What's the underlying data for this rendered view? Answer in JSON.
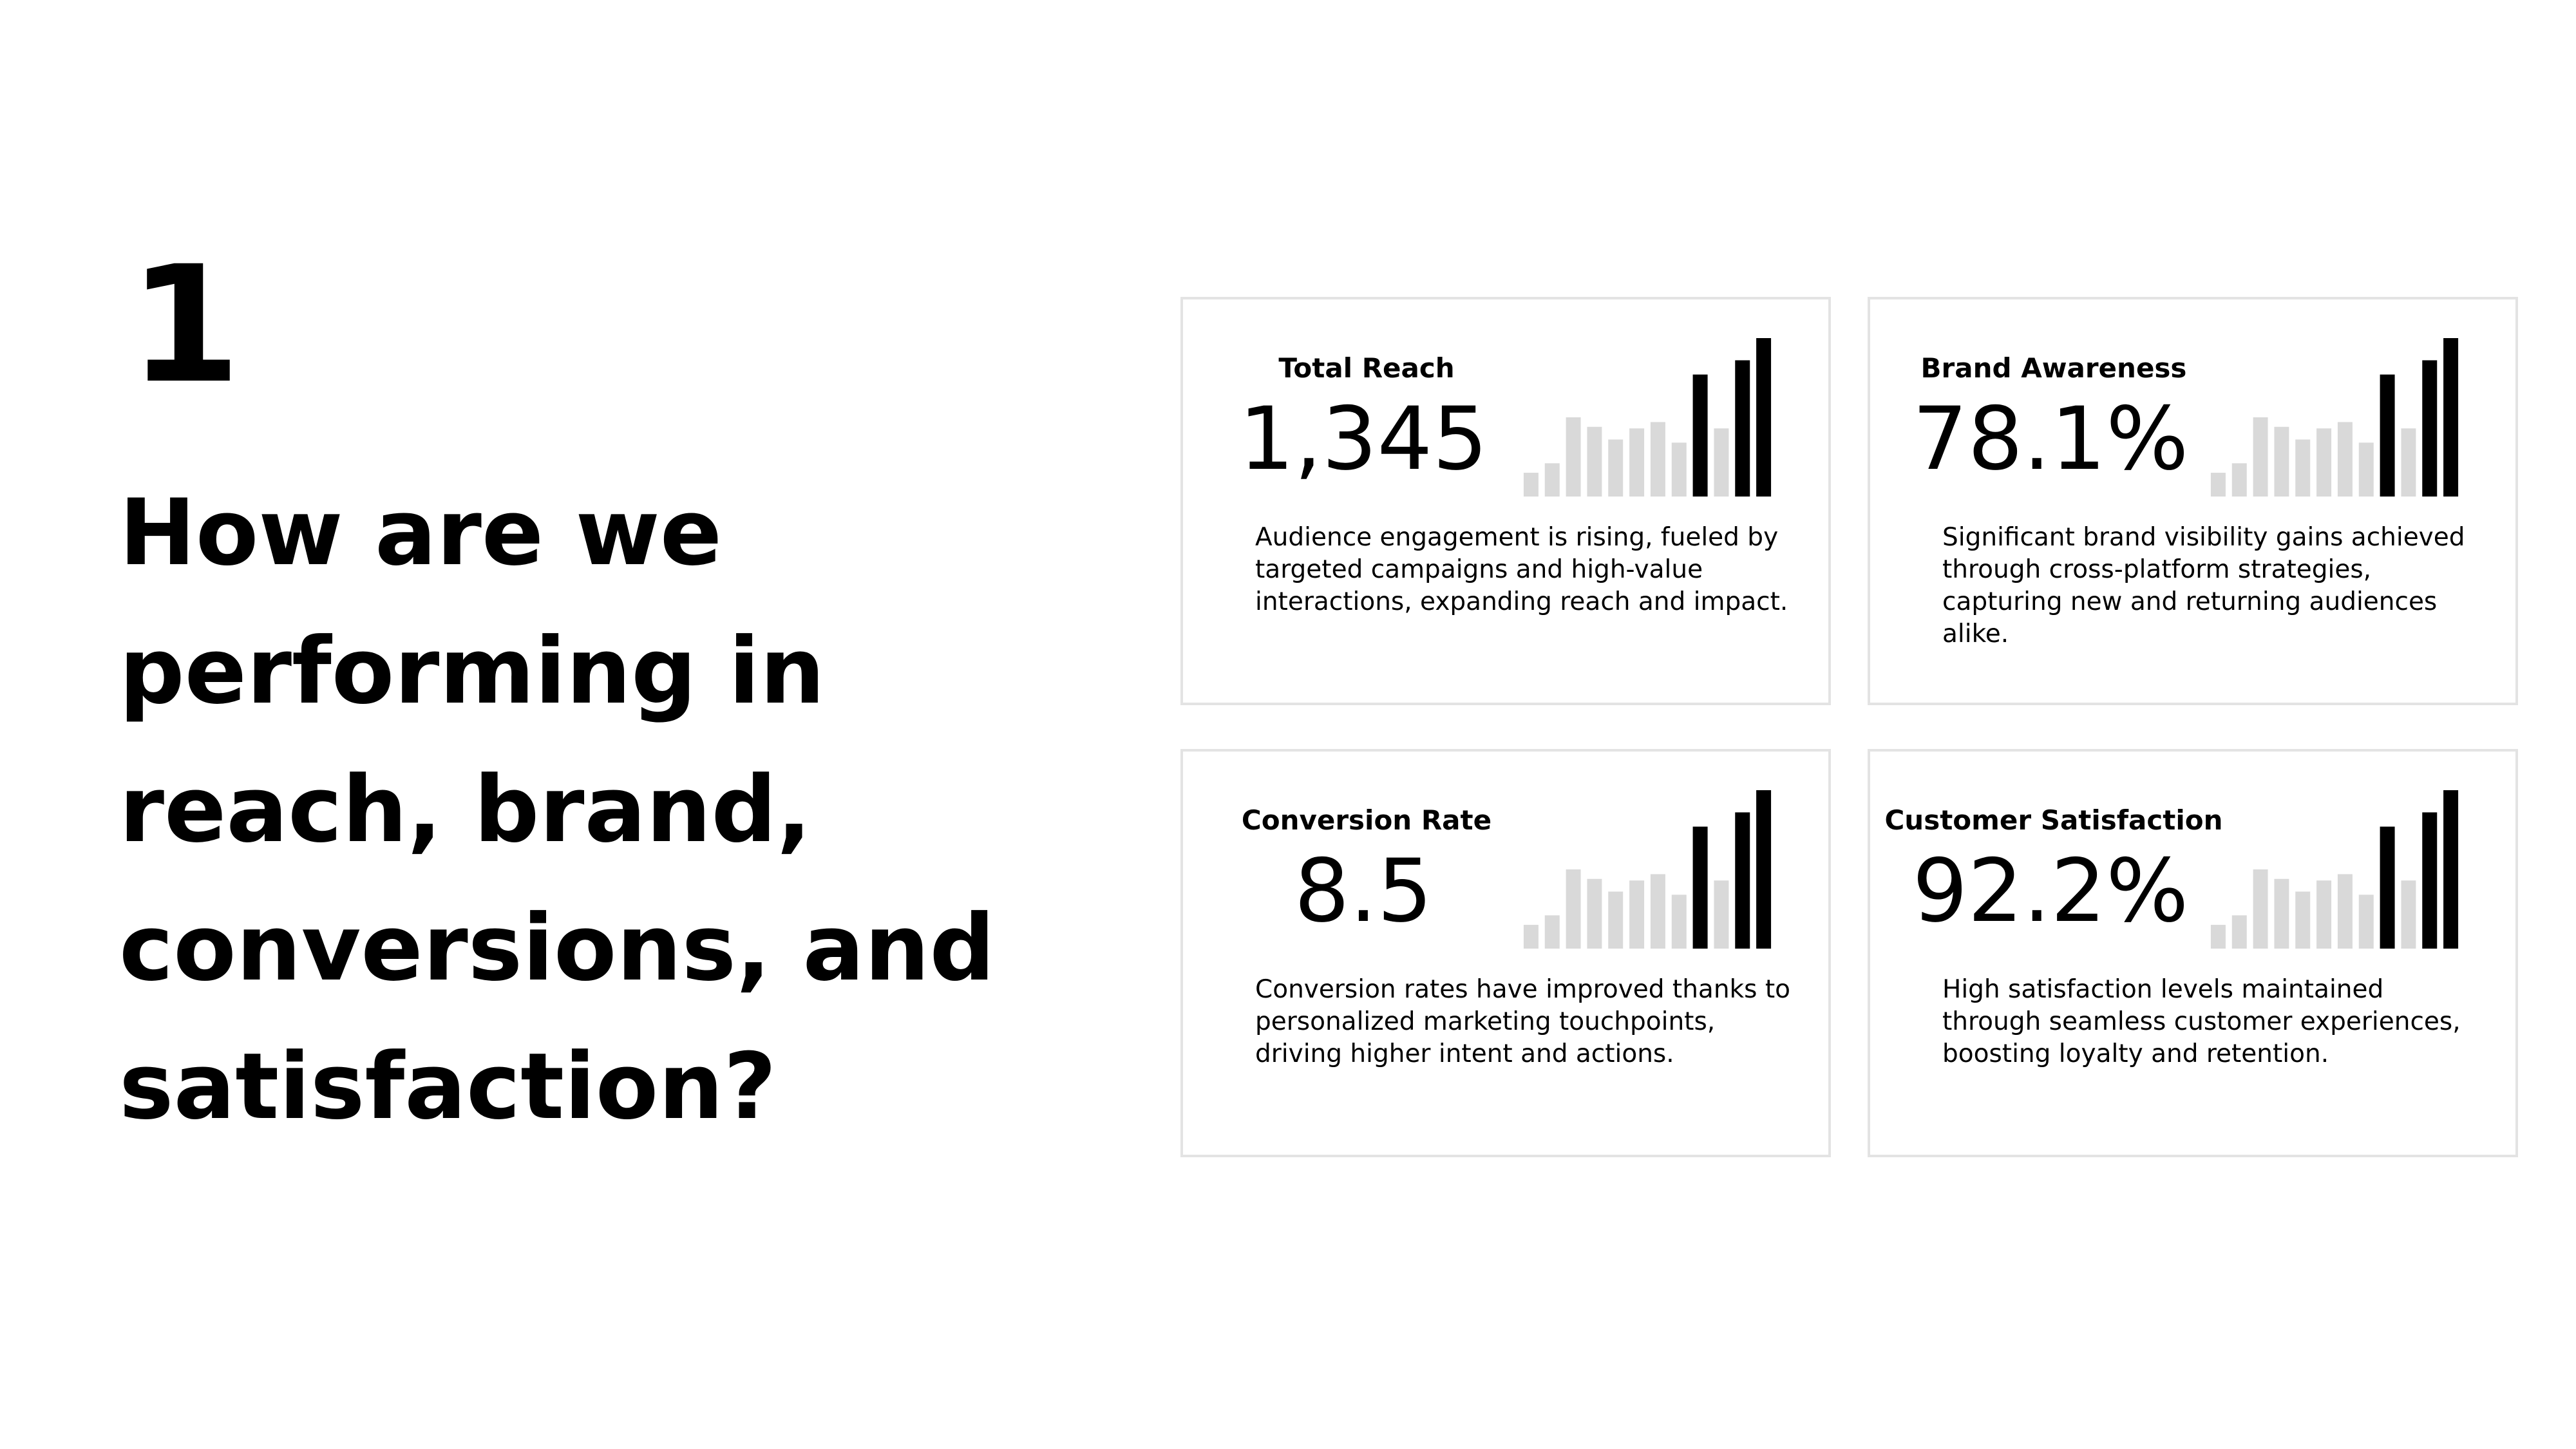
{
  "slide": {
    "number": "1",
    "question": "How are we performing in reach, brand, conversions, and satisfaction?"
  },
  "colors": {
    "bar_highlight": "#000000",
    "bar_muted": "#d9d9d9",
    "card_border": "#e3e3e3"
  },
  "cards": [
    {
      "title": "Total Reach",
      "value": "1,345",
      "description": "Audience engagement is rising, fueled by targeted campaigns and high-value interactions, expanding reach and impact."
    },
    {
      "title": "Brand Awareness",
      "value": "78.1%",
      "description": "Significant brand visibility gains achieved through cross-platform strategies, capturing new and returning audiences alike."
    },
    {
      "title": "Conversion Rate",
      "value": "8.5",
      "description": "Conversion rates have improved thanks to personalized marketing touchpoints, driving higher intent and actions."
    },
    {
      "title": "Customer Satisfaction",
      "value": "92.2%",
      "description": "High satisfaction levels maintained through seamless customer experiences, boosting loyalty and retention."
    }
  ],
  "chart_data": {
    "type": "bar",
    "values": [
      15,
      21,
      50,
      44,
      36,
      43,
      47,
      34,
      77,
      43,
      86,
      100
    ],
    "highlighted": [
      false,
      false,
      false,
      false,
      false,
      false,
      false,
      false,
      true,
      false,
      true,
      true
    ]
  }
}
